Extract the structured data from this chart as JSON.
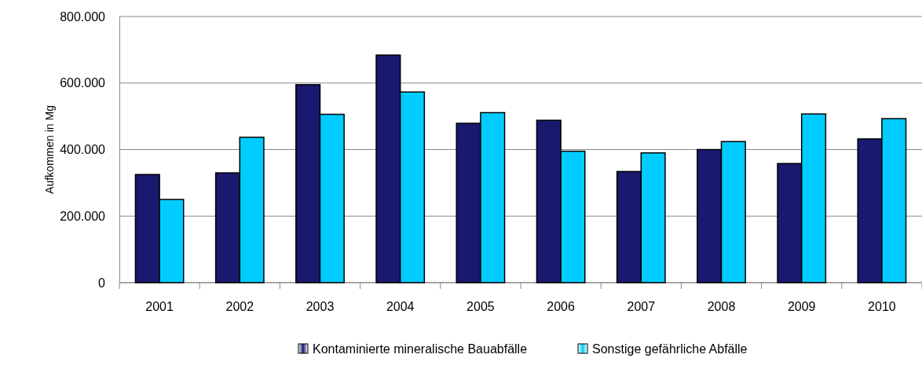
{
  "chart_data": {
    "type": "bar",
    "ylabel": "Aufkommen in Mg",
    "categories": [
      "2001",
      "2002",
      "2003",
      "2004",
      "2005",
      "2006",
      "2007",
      "2008",
      "2009",
      "2010"
    ],
    "series": [
      {
        "name": "Kontaminierte mineralische Bauabfälle",
        "color": "#191970",
        "values": [
          325000,
          330000,
          595000,
          684000,
          479000,
          488000,
          334000,
          400000,
          358000,
          432000
        ]
      },
      {
        "name": "Sonstige gefährliche Abfälle",
        "color": "#00ccff",
        "values": [
          250000,
          437000,
          506000,
          573000,
          511000,
          395000,
          390000,
          424000,
          507000,
          493000
        ]
      }
    ],
    "ylim": [
      0,
      800000
    ],
    "yticks": [
      0,
      {
        "value": 200000,
        "label": "200.000"
      },
      {
        "value": 400000,
        "label": "400.000"
      },
      {
        "value": 600000,
        "label": "600.000"
      },
      {
        "value": 800000,
        "label": "800.000"
      }
    ],
    "grid": "y",
    "legend": "bottom"
  }
}
